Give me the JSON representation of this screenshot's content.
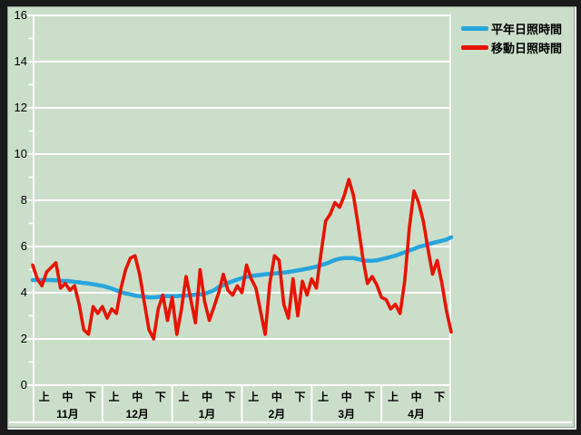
{
  "colors": {
    "background": "#cbdeca",
    "grid": "#ffffff",
    "frame": "#1a1a1a",
    "bevel_dark": "#8e9e8e",
    "bevel_light": "#ffffff",
    "text": "#000000",
    "series_normal": "#27a5dc",
    "series_moving": "#e61400"
  },
  "legend": {
    "position": "top-right"
  },
  "chart_data": {
    "type": "line",
    "title": "",
    "xlabel": "",
    "ylabel": "",
    "ylim": [
      0,
      16
    ],
    "y_tick_step": 2,
    "y_ticks": [
      0,
      2,
      4,
      6,
      8,
      10,
      12,
      14,
      16
    ],
    "grid": "horizontal white gridlines every 2 units, minor ticks every 1",
    "legend_position": "top-right",
    "months": [
      "11月",
      "12月",
      "1月",
      "2月",
      "3月",
      "4月"
    ],
    "decade_labels": [
      "上",
      "中",
      "下"
    ],
    "samples_per_month": 15,
    "series": [
      {
        "name": "平年日照時間",
        "color": "#27a5dc",
        "width": 4.5,
        "values": [
          4.55,
          4.55,
          4.55,
          4.55,
          4.55,
          4.54,
          4.52,
          4.51,
          4.5,
          4.47,
          4.45,
          4.42,
          4.4,
          4.37,
          4.33,
          4.3,
          4.24,
          4.18,
          4.1,
          4.02,
          3.97,
          3.93,
          3.88,
          3.85,
          3.83,
          3.8,
          3.8,
          3.82,
          3.85,
          3.85,
          3.85,
          3.85,
          3.87,
          3.88,
          3.9,
          3.92,
          3.93,
          3.95,
          4.03,
          4.1,
          4.25,
          4.33,
          4.42,
          4.5,
          4.57,
          4.63,
          4.68,
          4.72,
          4.75,
          4.77,
          4.8,
          4.81,
          4.83,
          4.85,
          4.87,
          4.9,
          4.93,
          4.97,
          5.0,
          5.04,
          5.08,
          5.13,
          5.2,
          5.25,
          5.33,
          5.42,
          5.47,
          5.5,
          5.5,
          5.5,
          5.45,
          5.4,
          5.38,
          5.38,
          5.4,
          5.45,
          5.5,
          5.55,
          5.6,
          5.68,
          5.75,
          5.83,
          5.9,
          5.98,
          6.03,
          6.1,
          6.15,
          6.2,
          6.25,
          6.3,
          6.4
        ]
      },
      {
        "name": "移動日照時間",
        "color": "#e61400",
        "width": 3.6,
        "values": [
          5.2,
          4.6,
          4.3,
          4.9,
          5.1,
          5.3,
          4.2,
          4.4,
          4.1,
          4.3,
          3.5,
          2.4,
          2.2,
          3.4,
          3.1,
          3.4,
          2.9,
          3.3,
          3.1,
          4.2,
          5.0,
          5.5,
          5.6,
          4.8,
          3.6,
          2.4,
          2.0,
          3.3,
          3.9,
          2.8,
          3.8,
          2.2,
          3.3,
          4.7,
          3.7,
          2.7,
          5.0,
          3.6,
          2.8,
          3.4,
          4.0,
          4.8,
          4.1,
          3.9,
          4.3,
          4.0,
          5.2,
          4.6,
          4.2,
          3.2,
          2.2,
          4.4,
          5.6,
          5.4,
          3.5,
          2.9,
          4.6,
          3.0,
          4.5,
          3.9,
          4.6,
          4.2,
          5.7,
          7.1,
          7.4,
          7.9,
          7.7,
          8.2,
          8.9,
          8.2,
          6.9,
          5.5,
          4.4,
          4.7,
          4.35,
          3.8,
          3.7,
          3.3,
          3.5,
          3.1,
          4.5,
          6.8,
          8.4,
          7.9,
          7.1,
          5.9,
          4.8,
          5.4,
          4.4,
          3.2,
          2.3
        ]
      }
    ]
  }
}
